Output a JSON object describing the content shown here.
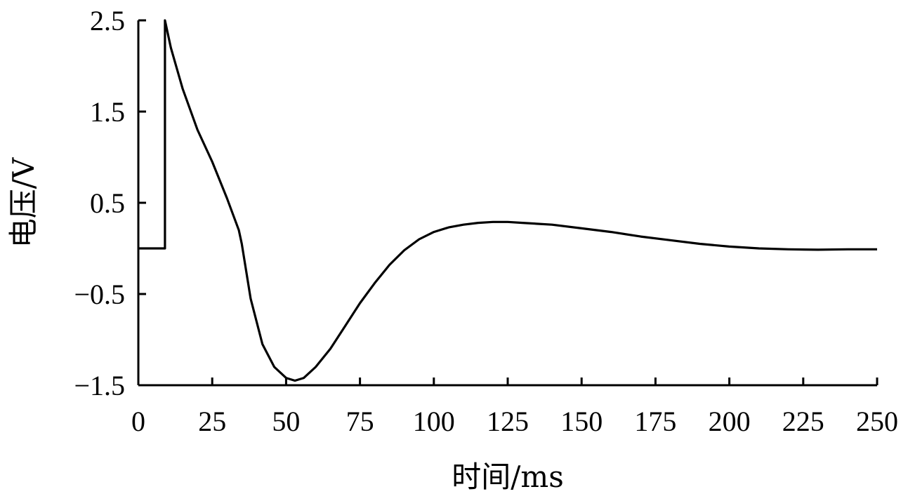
{
  "chart_data": {
    "type": "line",
    "xlabel": "时间/ms",
    "ylabel": "电压/V",
    "xlim": [
      0,
      250
    ],
    "ylim": [
      -1.5,
      2.5
    ],
    "grid": false,
    "x_ticks": [
      0,
      25,
      50,
      75,
      100,
      125,
      150,
      175,
      200,
      225,
      250
    ],
    "x_tick_labels": [
      "0",
      "25",
      "50",
      "75",
      "100",
      "125",
      "150",
      "175",
      "200",
      "225",
      "250"
    ],
    "y_ticks": [
      -1.5,
      -0.5,
      0.5,
      1.5,
      2.5
    ],
    "y_tick_labels": [
      "−1.5",
      "−0.5",
      "0.5",
      "1.5",
      "2.5"
    ],
    "series": [
      {
        "x": [
          0,
          9,
          9,
          9,
          9,
          11,
          15,
          20,
          25,
          30,
          34,
          35,
          38,
          42,
          46,
          50,
          53,
          56,
          60,
          65,
          70,
          75,
          80,
          85,
          90,
          95,
          100,
          105,
          110,
          115,
          120,
          125,
          130,
          140,
          150,
          160,
          170,
          180,
          190,
          200,
          210,
          220,
          230,
          240,
          250
        ],
        "y": [
          0,
          0,
          2.5,
          2.5,
          2.5,
          2.2,
          1.75,
          1.3,
          0.95,
          0.55,
          0.2,
          0.05,
          -0.55,
          -1.05,
          -1.3,
          -1.42,
          -1.45,
          -1.42,
          -1.3,
          -1.1,
          -0.85,
          -0.6,
          -0.38,
          -0.18,
          -0.02,
          0.1,
          0.18,
          0.23,
          0.26,
          0.28,
          0.29,
          0.29,
          0.28,
          0.26,
          0.22,
          0.18,
          0.13,
          0.09,
          0.05,
          0.02,
          0.0,
          -0.01,
          -0.015,
          -0.01,
          -0.01
        ]
      }
    ]
  }
}
